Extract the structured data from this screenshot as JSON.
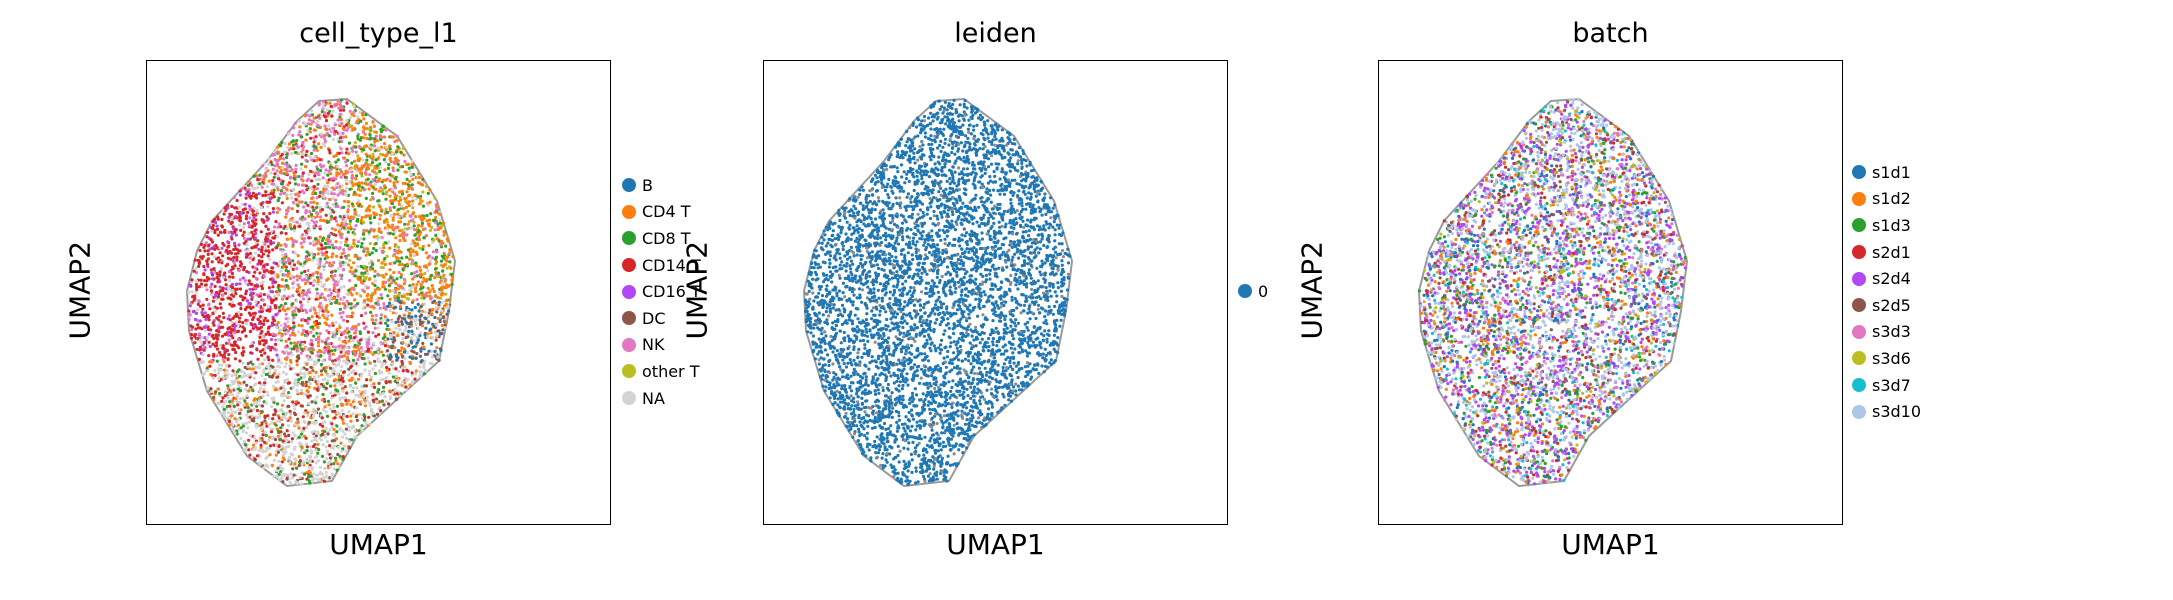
{
  "chart_data": [
    {
      "type": "scatter",
      "title": "cell_type_l1",
      "xlabel": "UMAP1",
      "ylabel": "UMAP2",
      "grid": false,
      "ticks": false,
      "legend_position": "right",
      "categories": [
        "B",
        "CD4 T",
        "CD8 T",
        "CD14 T",
        "CD16 T",
        "DC",
        "NK",
        "other T",
        "NA"
      ],
      "colors": [
        "#1f77b4",
        "#ff7f0e",
        "#2ca02c",
        "#d62728",
        "#b247f5",
        "#8c564b",
        "#e377c2",
        "#bcbd22",
        "#d3d3d3"
      ]
    },
    {
      "type": "scatter",
      "title": "leiden",
      "xlabel": "UMAP1",
      "ylabel": "UMAP2",
      "grid": false,
      "ticks": false,
      "legend_position": "right",
      "categories": [
        "0"
      ],
      "colors": [
        "#1f77b4"
      ]
    },
    {
      "type": "scatter",
      "title": "batch",
      "xlabel": "UMAP1",
      "ylabel": "UMAP2",
      "grid": false,
      "ticks": false,
      "legend_position": "right",
      "categories": [
        "s1d1",
        "s1d2",
        "s1d3",
        "s2d1",
        "s2d4",
        "s2d5",
        "s3d3",
        "s3d6",
        "s3d7",
        "s3d10"
      ],
      "colors": [
        "#1f77b4",
        "#ff7f0e",
        "#2ca02c",
        "#d62728",
        "#b247f5",
        "#8c564b",
        "#e377c2",
        "#bcbd22",
        "#17becf",
        "#aec7e8"
      ]
    }
  ]
}
